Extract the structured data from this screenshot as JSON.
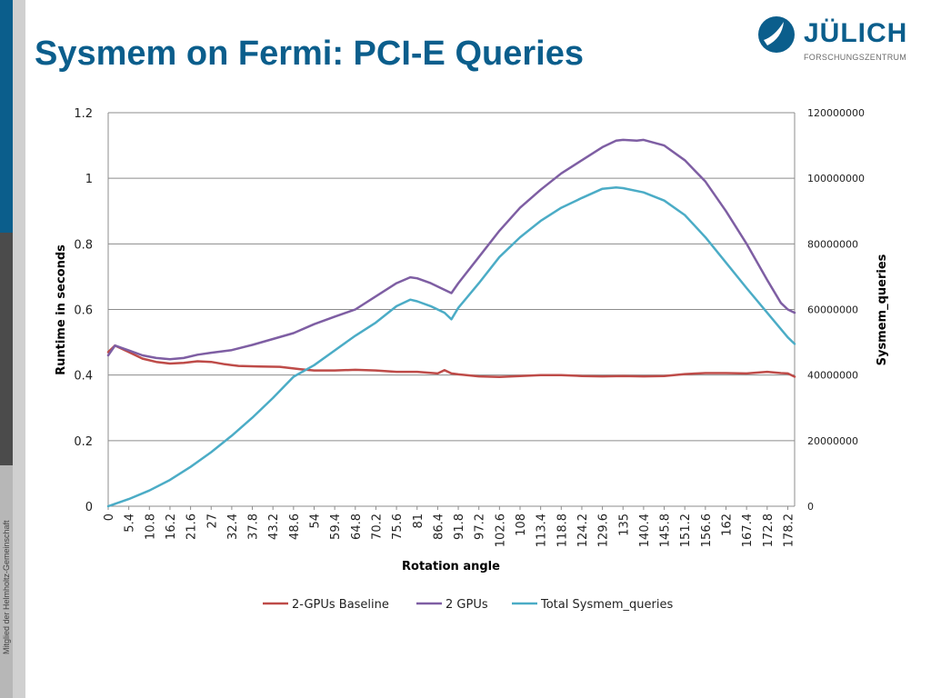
{
  "slide": {
    "title": "Sysmem on Fermi: PCI-E Queries",
    "side_caption": "Mitglied der Helmholtz-Gemeinschaft",
    "logo": {
      "name": "JÜLICH",
      "subtitle": "FORSCHUNGSZENTRUM",
      "icon": "juelich-logo-icon"
    }
  },
  "colors": {
    "brand": "#0b5e8c",
    "baseline": "#be4b48",
    "two_gpus": "#7e5ea3",
    "total_sysmem": "#4bacc6",
    "grid": "#8c8c8c"
  },
  "chart_data": {
    "type": "line",
    "title": "",
    "xlabel": "Rotation angle",
    "ylabel": "Runtime in seconds",
    "y2label": "Sysmem_queries",
    "ylim": [
      0,
      1.2
    ],
    "y2lim": [
      0,
      120000000
    ],
    "yticks": [
      "0",
      "0.2",
      "0.4",
      "0.6",
      "0.8",
      "1",
      "1.2"
    ],
    "y2ticks": [
      "0",
      "20000000",
      "40000000",
      "60000000",
      "80000000",
      "100000000",
      "120000000"
    ],
    "x_min": 0,
    "x_max": 180,
    "xtick_labels": [
      "0",
      "5.4",
      "10.8",
      "16.2",
      "21.6",
      "27",
      "32.4",
      "37.8",
      "43.2",
      "48.6",
      "54",
      "59.4",
      "64.8",
      "70.2",
      "75.6",
      "81",
      "86.4",
      "91.8",
      "97.2",
      "102.6",
      "108",
      "113.4",
      "118.8",
      "124.2",
      "129.6",
      "135",
      "140.4",
      "145.8",
      "151.2",
      "156.6",
      "162",
      "167.4",
      "172.8",
      "178.2"
    ],
    "grid": true,
    "legend_position": "bottom",
    "series": [
      {
        "name": "2-GPUs Baseline",
        "axis": "left",
        "color": "#be4b48",
        "x": [
          0,
          1.8,
          5.4,
          9,
          12.6,
          16.2,
          19.8,
          23.4,
          27,
          30.6,
          34.2,
          39.6,
          45,
          50.4,
          54,
          59.4,
          64.8,
          70.2,
          75.6,
          81,
          86.4,
          88.2,
          90,
          91.8,
          97.2,
          102.6,
          108,
          113.4,
          118.8,
          124.2,
          129.6,
          135,
          140.4,
          145.8,
          151.2,
          156.6,
          162,
          167.4,
          172.8,
          176.4,
          178.2,
          180
        ],
        "y": [
          0.47,
          0.49,
          0.47,
          0.45,
          0.44,
          0.435,
          0.437,
          0.442,
          0.44,
          0.433,
          0.428,
          0.426,
          0.425,
          0.418,
          0.414,
          0.414,
          0.416,
          0.414,
          0.41,
          0.41,
          0.405,
          0.415,
          0.405,
          0.402,
          0.396,
          0.394,
          0.397,
          0.4,
          0.4,
          0.397,
          0.396,
          0.397,
          0.396,
          0.397,
          0.403,
          0.406,
          0.406,
          0.405,
          0.41,
          0.406,
          0.405,
          0.395
        ]
      },
      {
        "name": "2 GPUs",
        "axis": "left",
        "color": "#7e5ea3",
        "x": [
          0,
          1.8,
          5.4,
          9,
          12.6,
          16.2,
          19.8,
          23.4,
          27,
          32.4,
          37.8,
          43.2,
          48.6,
          54,
          59.4,
          64.8,
          70.2,
          75.6,
          79.2,
          81,
          84.6,
          88.2,
          90,
          91.8,
          97.2,
          102.6,
          108,
          113.4,
          118.8,
          124.2,
          129.6,
          133.2,
          135,
          138.6,
          140.4,
          145.8,
          151.2,
          156.6,
          162,
          167.4,
          172.8,
          176.4,
          178.2,
          180
        ],
        "y": [
          0.46,
          0.49,
          0.475,
          0.46,
          0.452,
          0.448,
          0.452,
          0.462,
          0.468,
          0.476,
          0.492,
          0.51,
          0.528,
          0.555,
          0.578,
          0.6,
          0.64,
          0.68,
          0.698,
          0.695,
          0.68,
          0.66,
          0.65,
          0.68,
          0.76,
          0.84,
          0.91,
          0.965,
          1.015,
          1.055,
          1.095,
          1.115,
          1.117,
          1.115,
          1.117,
          1.1,
          1.055,
          0.99,
          0.9,
          0.8,
          0.69,
          0.62,
          0.6,
          0.59
        ]
      },
      {
        "name": "Total Sysmem_queries",
        "axis": "right",
        "color": "#4bacc6",
        "x": [
          0,
          5.4,
          10.8,
          16.2,
          21.6,
          27,
          32.4,
          37.8,
          43.2,
          48.6,
          54,
          59.4,
          64.8,
          70.2,
          75.6,
          79.2,
          81,
          84.6,
          88.2,
          90,
          91.8,
          97.2,
          102.6,
          108,
          113.4,
          118.8,
          124.2,
          129.6,
          133.2,
          135,
          140.4,
          145.8,
          151.2,
          156.6,
          162,
          167.4,
          172.8,
          178.2,
          180
        ],
        "y": [
          0,
          2200000,
          4800000,
          8000000,
          12000000,
          16500000,
          21500000,
          27000000,
          33000000,
          39500000,
          43000000,
          47500000,
          52000000,
          56000000,
          61000000,
          63000000,
          62500000,
          61000000,
          59000000,
          57000000,
          60500000,
          68000000,
          76000000,
          82000000,
          87000000,
          91000000,
          94000000,
          96800000,
          97200000,
          97000000,
          95700000,
          93200000,
          88800000,
          82000000,
          74300000,
          66500000,
          59000000,
          51500000,
          49500000
        ]
      }
    ]
  }
}
